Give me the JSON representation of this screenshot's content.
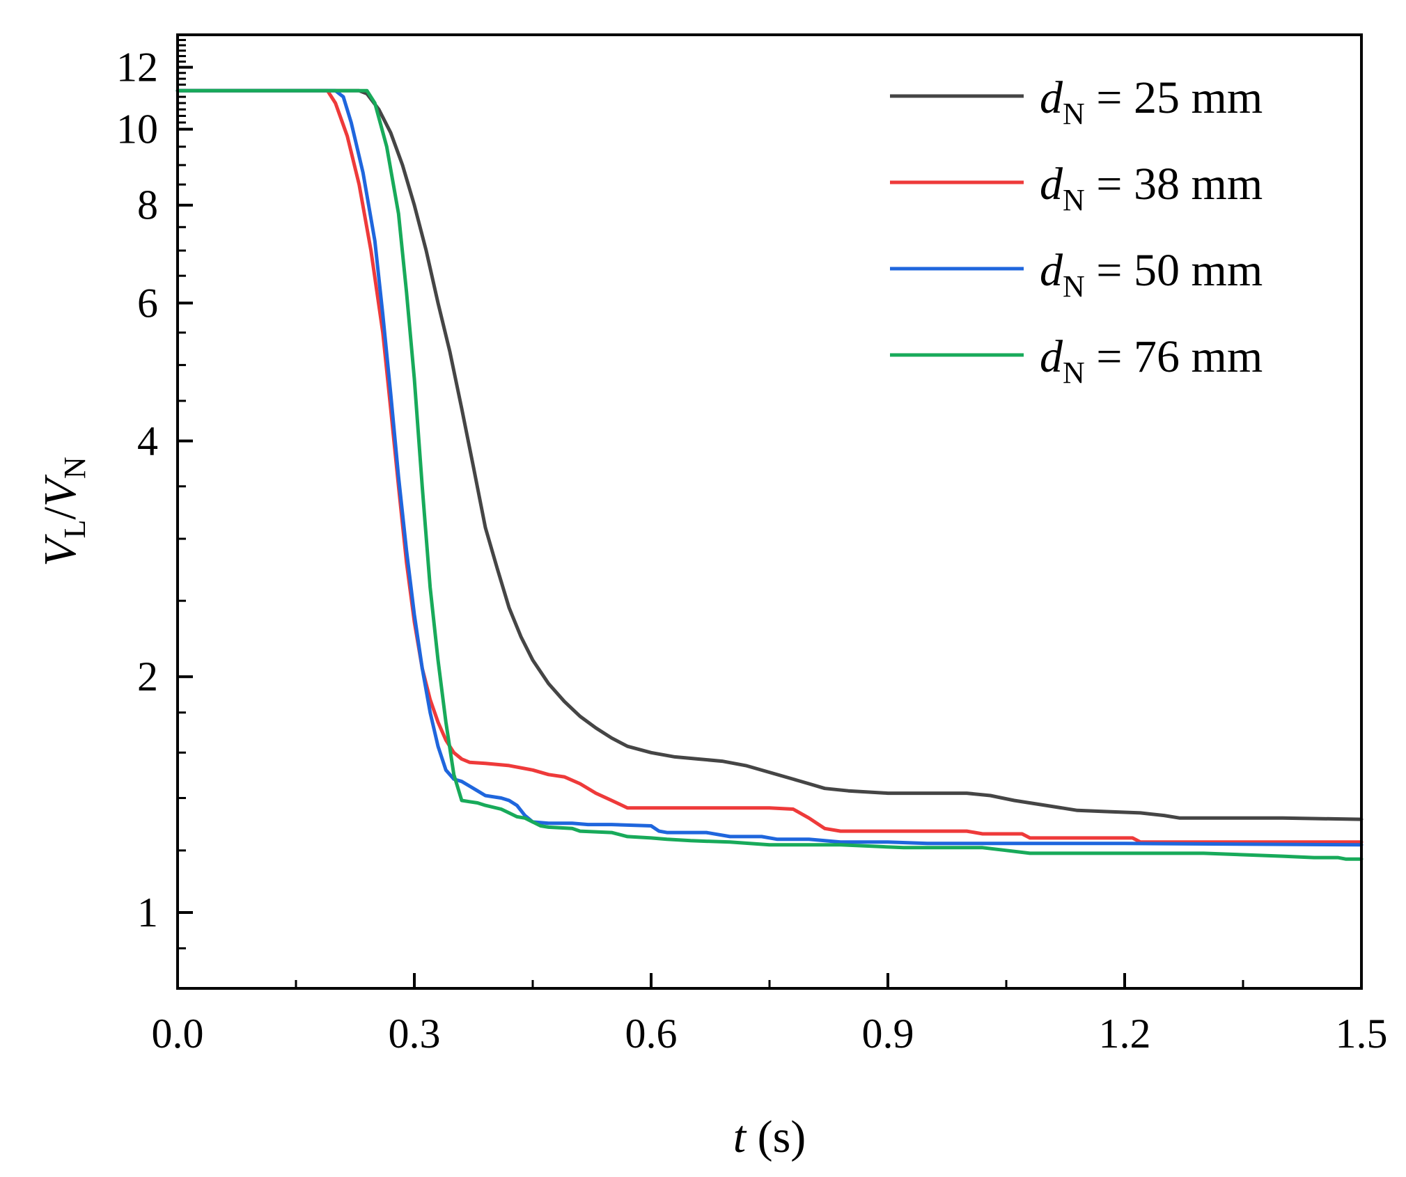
{
  "chart_data": {
    "type": "line",
    "title": "",
    "xlabel": {
      "var": "t",
      "unit": " (s)"
    },
    "ylabel": {
      "var1": "V",
      "sub1": "L",
      "slash": "/",
      "var2": "V",
      "sub2": "N"
    },
    "xlim": [
      0,
      1.5
    ],
    "ylim": [
      0.8,
      13.2
    ],
    "yscale": "log",
    "x_ticks": [
      0.0,
      0.3,
      0.6,
      0.9,
      1.2,
      1.5
    ],
    "x_tick_labels": [
      "0.0",
      "0.3",
      "0.6",
      "0.9",
      "1.2",
      "1.5"
    ],
    "x_minor_ticks": [
      0.15,
      0.45,
      0.75,
      1.05,
      1.35
    ],
    "y_ticks": [
      1,
      2,
      4,
      6,
      8,
      10,
      12
    ],
    "y_tick_labels": [
      "1",
      "2",
      "4",
      "6",
      "8",
      "10",
      "12"
    ],
    "y_minor_ticks": [
      0.9,
      1.2,
      1.4,
      1.6,
      1.8,
      2.5,
      3,
      3.5,
      4.5,
      5,
      5.5,
      6.5,
      7,
      7.5,
      8.5,
      9,
      9.5,
      10.2,
      10.4,
      10.6,
      10.8,
      11,
      11.2,
      11.4,
      11.6,
      11.8,
      12.2,
      12.4,
      12.6,
      12.8,
      13
    ],
    "legend_position": "top-right",
    "series": [
      {
        "name": "25 mm",
        "label_var": "d",
        "label_sub": "N",
        "label_eq": " = ",
        "color": "#454545",
        "points": [
          [
            0,
            11.2
          ],
          [
            0.23,
            11.2
          ],
          [
            0.24,
            11.1
          ],
          [
            0.255,
            10.6
          ],
          [
            0.27,
            9.9
          ],
          [
            0.285,
            9.0
          ],
          [
            0.3,
            8.0
          ],
          [
            0.315,
            7.0
          ],
          [
            0.33,
            6.0
          ],
          [
            0.345,
            5.2
          ],
          [
            0.36,
            4.4
          ],
          [
            0.375,
            3.7
          ],
          [
            0.39,
            3.1
          ],
          [
            0.405,
            2.75
          ],
          [
            0.42,
            2.45
          ],
          [
            0.435,
            2.25
          ],
          [
            0.45,
            2.1
          ],
          [
            0.47,
            1.96
          ],
          [
            0.49,
            1.86
          ],
          [
            0.51,
            1.78
          ],
          [
            0.53,
            1.72
          ],
          [
            0.55,
            1.67
          ],
          [
            0.57,
            1.63
          ],
          [
            0.6,
            1.6
          ],
          [
            0.63,
            1.58
          ],
          [
            0.66,
            1.57
          ],
          [
            0.69,
            1.56
          ],
          [
            0.72,
            1.54
          ],
          [
            0.75,
            1.51
          ],
          [
            0.78,
            1.48
          ],
          [
            0.8,
            1.46
          ],
          [
            0.82,
            1.44
          ],
          [
            0.85,
            1.43
          ],
          [
            0.9,
            1.42
          ],
          [
            0.95,
            1.42
          ],
          [
            1.0,
            1.42
          ],
          [
            1.03,
            1.41
          ],
          [
            1.06,
            1.39
          ],
          [
            1.1,
            1.37
          ],
          [
            1.14,
            1.35
          ],
          [
            1.18,
            1.345
          ],
          [
            1.22,
            1.34
          ],
          [
            1.25,
            1.33
          ],
          [
            1.27,
            1.32
          ],
          [
            1.3,
            1.32
          ],
          [
            1.4,
            1.32
          ],
          [
            1.5,
            1.315
          ]
        ]
      },
      {
        "name": "38 mm",
        "label_var": "d",
        "label_sub": "N",
        "label_eq": " = ",
        "color": "#ee3a3a",
        "points": [
          [
            0,
            11.2
          ],
          [
            0.19,
            11.2
          ],
          [
            0.2,
            10.8
          ],
          [
            0.215,
            9.8
          ],
          [
            0.23,
            8.5
          ],
          [
            0.245,
            7.0
          ],
          [
            0.26,
            5.5
          ],
          [
            0.27,
            4.4
          ],
          [
            0.28,
            3.5
          ],
          [
            0.29,
            2.8
          ],
          [
            0.3,
            2.35
          ],
          [
            0.31,
            2.05
          ],
          [
            0.32,
            1.87
          ],
          [
            0.33,
            1.75
          ],
          [
            0.34,
            1.66
          ],
          [
            0.35,
            1.6
          ],
          [
            0.36,
            1.57
          ],
          [
            0.37,
            1.555
          ],
          [
            0.39,
            1.55
          ],
          [
            0.42,
            1.54
          ],
          [
            0.45,
            1.52
          ],
          [
            0.47,
            1.5
          ],
          [
            0.49,
            1.49
          ],
          [
            0.51,
            1.46
          ],
          [
            0.53,
            1.42
          ],
          [
            0.55,
            1.39
          ],
          [
            0.57,
            1.36
          ],
          [
            0.6,
            1.36
          ],
          [
            0.65,
            1.36
          ],
          [
            0.7,
            1.36
          ],
          [
            0.75,
            1.36
          ],
          [
            0.78,
            1.355
          ],
          [
            0.8,
            1.32
          ],
          [
            0.82,
            1.28
          ],
          [
            0.84,
            1.27
          ],
          [
            0.9,
            1.27
          ],
          [
            1.0,
            1.27
          ],
          [
            1.02,
            1.26
          ],
          [
            1.07,
            1.26
          ],
          [
            1.08,
            1.245
          ],
          [
            1.15,
            1.245
          ],
          [
            1.21,
            1.245
          ],
          [
            1.22,
            1.23
          ],
          [
            1.3,
            1.23
          ],
          [
            1.4,
            1.23
          ],
          [
            1.5,
            1.23
          ]
        ]
      },
      {
        "name": "50 mm",
        "label_var": "d",
        "label_sub": "N",
        "label_eq": " = ",
        "color": "#1f66dd",
        "points": [
          [
            0,
            11.2
          ],
          [
            0.2,
            11.2
          ],
          [
            0.21,
            11.0
          ],
          [
            0.22,
            10.2
          ],
          [
            0.235,
            8.8
          ],
          [
            0.25,
            7.2
          ],
          [
            0.26,
            5.8
          ],
          [
            0.27,
            4.6
          ],
          [
            0.28,
            3.6
          ],
          [
            0.29,
            2.9
          ],
          [
            0.3,
            2.4
          ],
          [
            0.31,
            2.05
          ],
          [
            0.32,
            1.8
          ],
          [
            0.33,
            1.63
          ],
          [
            0.34,
            1.52
          ],
          [
            0.35,
            1.48
          ],
          [
            0.36,
            1.47
          ],
          [
            0.37,
            1.45
          ],
          [
            0.38,
            1.43
          ],
          [
            0.39,
            1.41
          ],
          [
            0.41,
            1.4
          ],
          [
            0.42,
            1.39
          ],
          [
            0.43,
            1.37
          ],
          [
            0.44,
            1.33
          ],
          [
            0.45,
            1.305
          ],
          [
            0.47,
            1.3
          ],
          [
            0.5,
            1.3
          ],
          [
            0.52,
            1.295
          ],
          [
            0.55,
            1.295
          ],
          [
            0.6,
            1.29
          ],
          [
            0.61,
            1.27
          ],
          [
            0.62,
            1.265
          ],
          [
            0.67,
            1.265
          ],
          [
            0.7,
            1.25
          ],
          [
            0.74,
            1.25
          ],
          [
            0.76,
            1.24
          ],
          [
            0.8,
            1.24
          ],
          [
            0.82,
            1.235
          ],
          [
            0.84,
            1.23
          ],
          [
            0.9,
            1.23
          ],
          [
            0.95,
            1.225
          ],
          [
            1.0,
            1.225
          ],
          [
            1.2,
            1.225
          ],
          [
            1.5,
            1.22
          ]
        ]
      },
      {
        "name": "76 mm",
        "label_var": "d",
        "label_sub": "N",
        "label_eq": " = ",
        "color": "#18aa5a",
        "points": [
          [
            0,
            11.2
          ],
          [
            0.24,
            11.2
          ],
          [
            0.25,
            10.8
          ],
          [
            0.265,
            9.5
          ],
          [
            0.28,
            7.8
          ],
          [
            0.29,
            6.2
          ],
          [
            0.3,
            4.8
          ],
          [
            0.31,
            3.5
          ],
          [
            0.32,
            2.6
          ],
          [
            0.33,
            2.1
          ],
          [
            0.34,
            1.75
          ],
          [
            0.35,
            1.5
          ],
          [
            0.36,
            1.39
          ],
          [
            0.37,
            1.385
          ],
          [
            0.38,
            1.38
          ],
          [
            0.39,
            1.37
          ],
          [
            0.41,
            1.355
          ],
          [
            0.42,
            1.34
          ],
          [
            0.43,
            1.325
          ],
          [
            0.44,
            1.32
          ],
          [
            0.45,
            1.305
          ],
          [
            0.46,
            1.29
          ],
          [
            0.47,
            1.285
          ],
          [
            0.5,
            1.28
          ],
          [
            0.51,
            1.27
          ],
          [
            0.55,
            1.265
          ],
          [
            0.57,
            1.25
          ],
          [
            0.6,
            1.245
          ],
          [
            0.62,
            1.24
          ],
          [
            0.65,
            1.235
          ],
          [
            0.7,
            1.23
          ],
          [
            0.75,
            1.22
          ],
          [
            0.78,
            1.22
          ],
          [
            0.84,
            1.22
          ],
          [
            0.88,
            1.215
          ],
          [
            0.92,
            1.21
          ],
          [
            0.96,
            1.21
          ],
          [
            1.02,
            1.21
          ],
          [
            1.05,
            1.2
          ],
          [
            1.08,
            1.19
          ],
          [
            1.12,
            1.19
          ],
          [
            1.2,
            1.19
          ],
          [
            1.3,
            1.19
          ],
          [
            1.35,
            1.185
          ],
          [
            1.4,
            1.18
          ],
          [
            1.44,
            1.175
          ],
          [
            1.47,
            1.175
          ],
          [
            1.48,
            1.17
          ],
          [
            1.5,
            1.17
          ]
        ]
      }
    ]
  }
}
